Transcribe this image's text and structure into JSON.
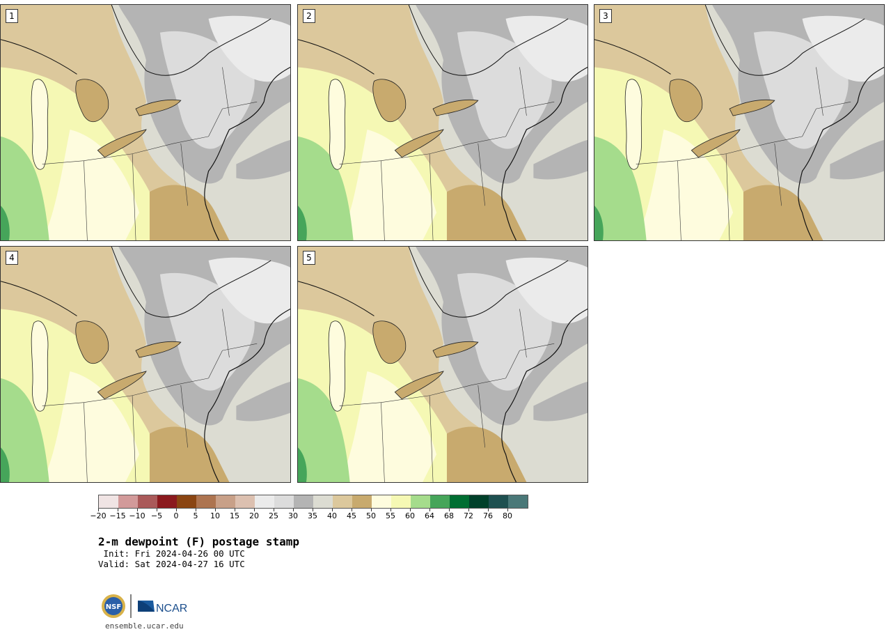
{
  "panels": [
    {
      "label": "1"
    },
    {
      "label": "2"
    },
    {
      "label": "3"
    },
    {
      "label": "4"
    },
    {
      "label": "5"
    }
  ],
  "colorbar": {
    "colors": [
      "#f0e4e4",
      "#d29a9a",
      "#aa5a5a",
      "#8b1a1e",
      "#8a4512",
      "#ad7450",
      "#c8a088",
      "#dcc0b0",
      "#ebebeb",
      "#dcdcdc",
      "#b4b4b4",
      "#dcdcd2",
      "#dcc89c",
      "#c8aa6e",
      "#fefcde",
      "#f5f8b4",
      "#a5dc8c",
      "#46a55a",
      "#006e32",
      "#00402a",
      "#1e5050",
      "#4a7878"
    ],
    "ticks": [
      "−20",
      "−15",
      "−10",
      "−5",
      "0",
      "5",
      "10",
      "15",
      "20",
      "25",
      "30",
      "35",
      "40",
      "45",
      "50",
      "55",
      "60",
      "64",
      "68",
      "72",
      "76",
      "80"
    ]
  },
  "title": "2-m dewpoint (F) postage stamp",
  "init": " Init: Fri 2024-04-26 00 UTC",
  "valid": "Valid: Sat 2024-04-27 16 UTC",
  "footer": {
    "url": "ensemble.ucar.edu",
    "logo_text": "NCAR",
    "seal_text": "NSF"
  }
}
